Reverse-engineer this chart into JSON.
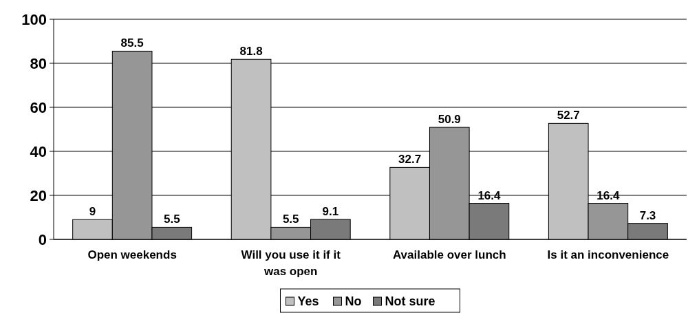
{
  "chart_data": {
    "type": "bar",
    "categories": [
      "Open weekends",
      "Will you use it if it was open",
      "Available over lunch",
      "Is it an inconvenience"
    ],
    "series": [
      {
        "name": "Yes",
        "color": "#c0c0c0",
        "values": [
          9,
          81.8,
          32.7,
          52.7
        ]
      },
      {
        "name": "No",
        "color": "#969696",
        "values": [
          85.5,
          5.5,
          50.9,
          16.4
        ]
      },
      {
        "name": "Not sure",
        "color": "#7a7a7a",
        "values": [
          5.5,
          9.1,
          16.4,
          7.3
        ]
      }
    ],
    "ylim": [
      0,
      100
    ],
    "yticks": [
      0,
      20,
      40,
      60,
      80,
      100
    ],
    "grid": "y",
    "legend": "bottom",
    "data_labels": true
  }
}
